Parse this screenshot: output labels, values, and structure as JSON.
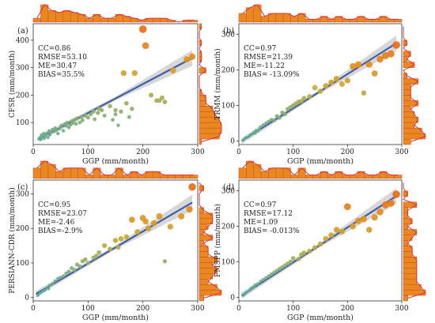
{
  "chart_data": [
    {
      "type": "scatter",
      "panel_label": "(a)",
      "xlabel": "GGP (mm/month)",
      "ylabel": "CFSR (mm/month)",
      "xlim": [
        0,
        300
      ],
      "ylim": [
        20,
        460
      ],
      "xticks": [
        0,
        100,
        200,
        300
      ],
      "yticks": [
        100,
        200,
        300,
        400
      ],
      "stats": [
        "CC=0.86",
        "RMSE=53.10",
        "ME=30.47",
        "BIAS=35.5%"
      ],
      "fit": [
        [
          10,
          40
        ],
        [
          290,
          335
        ]
      ],
      "x": [
        10,
        12,
        14,
        15,
        17,
        19,
        20,
        22,
        24,
        25,
        27,
        29,
        30,
        32,
        35,
        38,
        40,
        42,
        45,
        48,
        50,
        52,
        55,
        58,
        60,
        62,
        65,
        68,
        70,
        72,
        75,
        78,
        80,
        85,
        88,
        90,
        95,
        100,
        105,
        110,
        112,
        118,
        120,
        125,
        130,
        140,
        145,
        150,
        150,
        155,
        160,
        165,
        170,
        175,
        180,
        185,
        200,
        205,
        215,
        225,
        230,
        235,
        240,
        255,
        280,
        290
      ],
      "y": [
        40,
        45,
        38,
        55,
        48,
        60,
        42,
        50,
        58,
        62,
        45,
        70,
        55,
        65,
        75,
        68,
        80,
        72,
        60,
        78,
        85,
        90,
        70,
        95,
        88,
        100,
        82,
        92,
        105,
        98,
        110,
        95,
        115,
        100,
        120,
        108,
        125,
        118,
        130,
        140,
        112,
        135,
        150,
        145,
        125,
        160,
        110,
        130,
        145,
        90,
        140,
        280,
        170,
        120,
        150,
        280,
        440,
        380,
        200,
        180,
        180,
        190,
        175,
        290,
        330,
        340
      ]
    },
    {
      "type": "scatter",
      "panel_label": "(b)",
      "xlabel": "GGP (mm/month)",
      "ylabel": "TRMM (mm/month)",
      "xlim": [
        0,
        300
      ],
      "ylim": [
        -10,
        330
      ],
      "xticks": [
        0,
        100,
        200,
        300
      ],
      "yticks": [
        0,
        100,
        200,
        300
      ],
      "stats": [
        "CC=0.97",
        "RMSE=21.39",
        "ME=-11.22",
        "BIAS= -13.09%"
      ],
      "fit": [
        [
          5,
          0
        ],
        [
          290,
          275
        ]
      ],
      "x": [
        8,
        10,
        12,
        15,
        18,
        20,
        22,
        25,
        28,
        30,
        32,
        35,
        38,
        40,
        45,
        50,
        55,
        60,
        65,
        70,
        75,
        80,
        85,
        90,
        95,
        100,
        105,
        110,
        115,
        120,
        130,
        140,
        150,
        160,
        170,
        180,
        190,
        200,
        210,
        220,
        230,
        240,
        250,
        260,
        270,
        280,
        290
      ],
      "y": [
        2,
        5,
        8,
        10,
        12,
        15,
        18,
        20,
        25,
        22,
        30,
        28,
        35,
        40,
        45,
        50,
        55,
        60,
        58,
        70,
        65,
        80,
        75,
        90,
        95,
        100,
        105,
        110,
        112,
        120,
        125,
        150,
        140,
        155,
        165,
        175,
        160,
        170,
        210,
        215,
        135,
        215,
        190,
        230,
        240,
        245,
        270
      ]
    },
    {
      "type": "scatter",
      "panel_label": "(c)",
      "xlabel": "GGP (mm/month)",
      "ylabel": "PERSIANN-CDR (mm/month)",
      "xlim": [
        0,
        300
      ],
      "ylim": [
        -10,
        340
      ],
      "xticks": [
        0,
        100,
        200,
        300
      ],
      "yticks": [
        0,
        100,
        200,
        300
      ],
      "stats": [
        "CC=0.95",
        "RMSE=23.07",
        "ME=-2.46",
        "BIAS=-2.9%"
      ],
      "fit": [
        [
          5,
          10
        ],
        [
          290,
          275
        ]
      ],
      "x": [
        8,
        10,
        12,
        15,
        18,
        20,
        22,
        25,
        28,
        30,
        35,
        40,
        45,
        50,
        55,
        60,
        65,
        70,
        75,
        80,
        85,
        90,
        95,
        100,
        110,
        115,
        120,
        130,
        140,
        150,
        155,
        160,
        170,
        180,
        190,
        200,
        205,
        210,
        220,
        230,
        240,
        250,
        270,
        285,
        290
      ],
      "y": [
        5,
        8,
        12,
        15,
        18,
        20,
        22,
        28,
        25,
        35,
        40,
        48,
        55,
        58,
        62,
        70,
        75,
        85,
        80,
        95,
        90,
        105,
        110,
        100,
        115,
        120,
        130,
        150,
        140,
        165,
        145,
        170,
        175,
        225,
        190,
        230,
        220,
        200,
        215,
        235,
        105,
        205,
        235,
        255,
        320
      ]
    },
    {
      "type": "scatter",
      "panel_label": "(d)",
      "xlabel": "GGP (mm/month)",
      "ylabel": "FMSPP (mm/month)",
      "xlim": [
        0,
        300
      ],
      "ylim": [
        -10,
        330
      ],
      "xticks": [
        0,
        100,
        200,
        300
      ],
      "yticks": [
        0,
        100,
        200,
        300
      ],
      "stats": [
        "CC=0.97",
        "RMSE=17.12",
        "ME=1.09",
        "BIAS= -0.013%"
      ],
      "fit": [
        [
          5,
          5
        ],
        [
          290,
          285
        ]
      ],
      "x": [
        8,
        10,
        12,
        15,
        18,
        20,
        22,
        25,
        28,
        30,
        35,
        40,
        45,
        50,
        55,
        60,
        65,
        70,
        75,
        80,
        85,
        90,
        95,
        100,
        110,
        115,
        120,
        130,
        140,
        150,
        160,
        170,
        180,
        190,
        200,
        210,
        220,
        230,
        240,
        250,
        260,
        270,
        280,
        290
      ],
      "y": [
        5,
        8,
        12,
        15,
        18,
        20,
        25,
        28,
        30,
        35,
        38,
        45,
        50,
        55,
        60,
        65,
        70,
        75,
        80,
        85,
        90,
        95,
        100,
        110,
        108,
        120,
        125,
        130,
        140,
        150,
        165,
        175,
        190,
        185,
        255,
        200,
        215,
        220,
        190,
        225,
        240,
        260,
        265,
        290
      ]
    }
  ]
}
